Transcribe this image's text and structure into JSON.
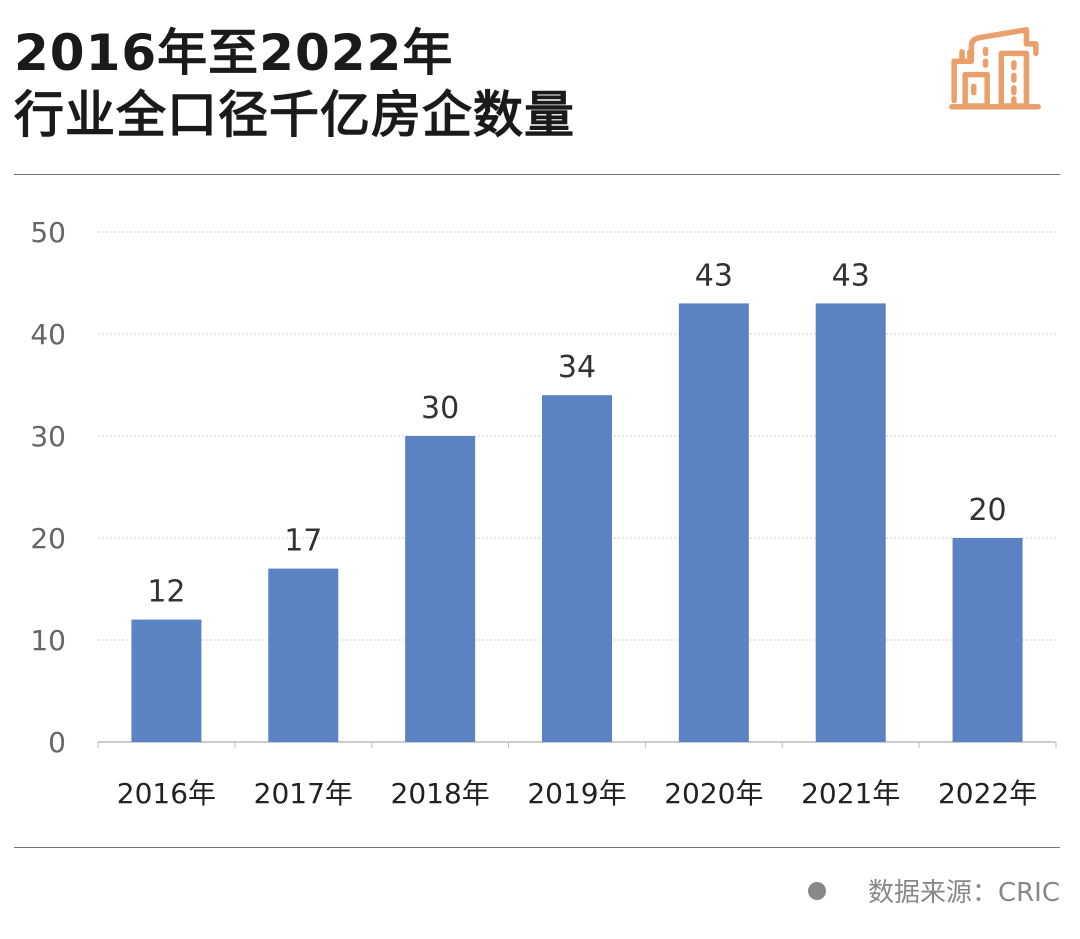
{
  "header": {
    "title_line1": "2016年至2022年",
    "title_line2": "行业全口径千亿房企数量",
    "icon": "buildings-icon",
    "icon_color": "#E9A06B"
  },
  "chart_data": {
    "type": "bar",
    "categories": [
      "2016年",
      "2017年",
      "2018年",
      "2019年",
      "2020年",
      "2021年",
      "2022年"
    ],
    "values": [
      12,
      17,
      30,
      34,
      43,
      43,
      20
    ],
    "data_labels": [
      "12",
      "17",
      "30",
      "34",
      "43",
      "43",
      "20"
    ],
    "ylim": [
      0,
      50
    ],
    "yticks": [
      "0",
      "10",
      "20",
      "30",
      "40",
      "50"
    ],
    "grid": true,
    "bar_color": "#5B82C2",
    "title": "",
    "xlabel": "",
    "ylabel": ""
  },
  "footer": {
    "source": "数据来源：CRIC"
  }
}
